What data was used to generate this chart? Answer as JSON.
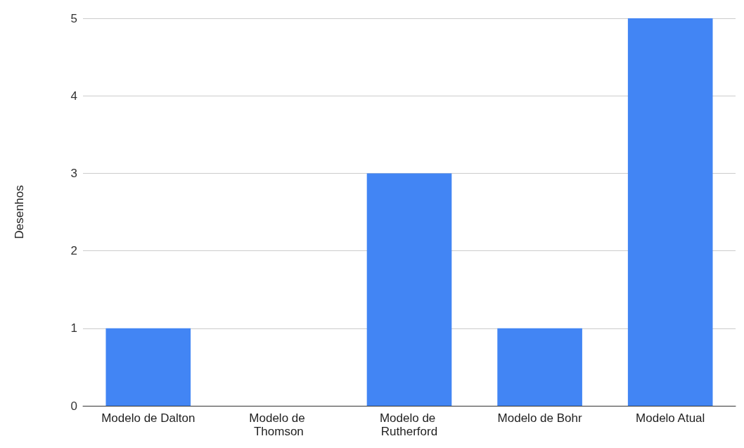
{
  "chart_data": {
    "type": "bar",
    "ylabel": "Desenhos",
    "categories": [
      "Modelo de Dalton",
      "Modelo de Thomson",
      "Modelo de Rutherford",
      "Modelo de Bohr",
      "Modelo Atual"
    ],
    "values": [
      1,
      0,
      3,
      1,
      5
    ],
    "color": "#4285f4",
    "ylim": [
      0,
      5
    ],
    "yticks": [
      0,
      1,
      2,
      3,
      4,
      5
    ],
    "grid": "y"
  }
}
